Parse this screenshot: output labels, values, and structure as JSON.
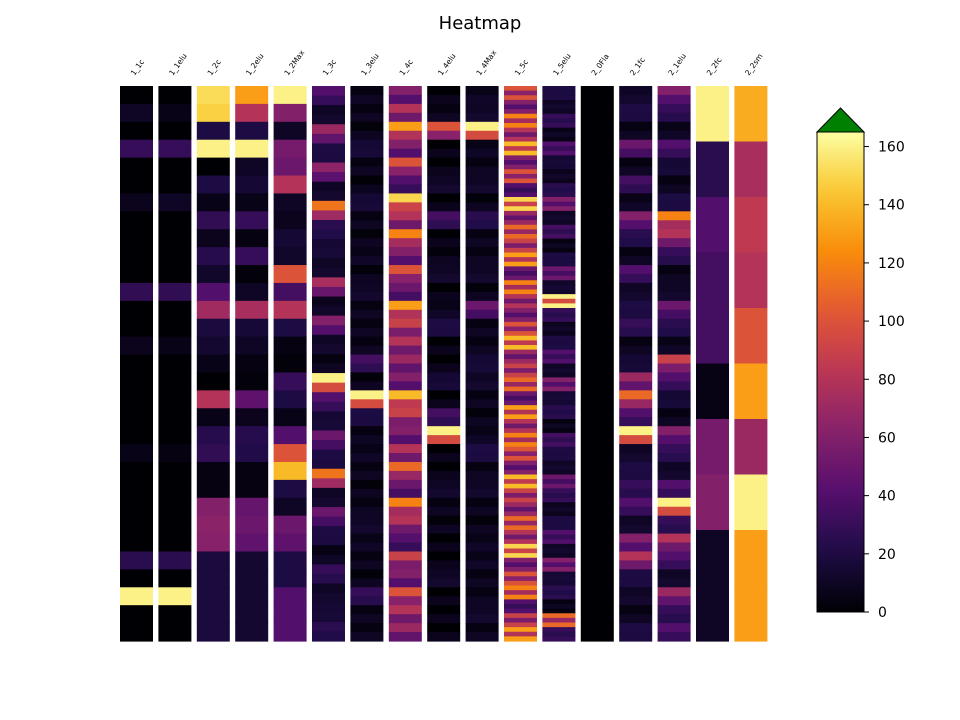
{
  "chart_data": {
    "type": "heatmap",
    "title": "Heatmap",
    "colormap": "inferno",
    "extend": "max",
    "extend_color": "#008000",
    "colorbar_range": [
      0,
      165
    ],
    "colorbar_ticks": [
      0,
      20,
      40,
      60,
      80,
      100,
      120,
      140,
      160
    ],
    "columns": [
      {
        "label": "1_1c",
        "stripes": 0,
        "values": [
          0,
          10,
          0,
          30,
          0,
          0,
          8,
          0,
          0,
          0,
          0,
          28,
          0,
          0,
          8,
          0,
          0,
          0,
          0,
          0,
          6,
          0,
          0,
          0,
          0,
          0,
          25,
          0,
          160,
          0,
          0
        ]
      },
      {
        "label": "1_1elu",
        "stripes": 0,
        "values": [
          0,
          6,
          0,
          30,
          0,
          0,
          10,
          0,
          0,
          0,
          0,
          28,
          0,
          0,
          6,
          0,
          0,
          0,
          0,
          0,
          4,
          0,
          0,
          0,
          0,
          0,
          25,
          0,
          160,
          0,
          0
        ]
      },
      {
        "label": "1_2c",
        "stripes": 0,
        "values": [
          152,
          148,
          20,
          160,
          0,
          20,
          6,
          28,
          8,
          24,
          12,
          40,
          72,
          18,
          14,
          6,
          0,
          80,
          6,
          24,
          28,
          4,
          4,
          60,
          64,
          62,
          18,
          18,
          18,
          18,
          18
        ]
      },
      {
        "label": "1_2elu",
        "stripes": 0,
        "values": [
          130,
          80,
          20,
          160,
          10,
          15,
          6,
          30,
          4,
          30,
          2,
          10,
          75,
          16,
          10,
          4,
          2,
          45,
          8,
          24,
          22,
          4,
          4,
          48,
          50,
          46,
          14,
          14,
          14,
          14,
          14
        ]
      },
      {
        "label": "1_2Max",
        "stripes": 0,
        "values": [
          160,
          60,
          10,
          55,
          50,
          80,
          10,
          8,
          15,
          12,
          100,
          35,
          80,
          20,
          4,
          2,
          30,
          20,
          6,
          40,
          100,
          140,
          20,
          10,
          50,
          45,
          20,
          20,
          40,
          40,
          40
        ]
      },
      {
        "label": "1_3c",
        "stripes": 1,
        "values": [
          40,
          10,
          70,
          20,
          65,
          10,
          115,
          25,
          15,
          10,
          75,
          8,
          60,
          10,
          4,
          160,
          40,
          15,
          50,
          20,
          115,
          10,
          50,
          20,
          5,
          30,
          10,
          15,
          25
        ]
      },
      {
        "label": "1_3elu",
        "stripes": 1,
        "values": [
          4,
          4,
          2,
          15,
          4,
          1,
          15,
          4,
          2,
          6,
          2,
          10,
          4,
          4,
          4,
          35,
          2,
          160,
          20,
          4,
          6,
          4,
          2,
          4,
          10,
          6,
          4,
          2,
          30,
          4,
          4
        ]
      },
      {
        "label": "1_4c",
        "stripes": 1,
        "values": [
          60,
          80,
          130,
          60,
          100,
          40,
          150,
          80,
          120,
          60,
          100,
          50,
          130,
          90,
          80,
          70,
          60,
          140,
          90,
          60,
          80,
          110,
          50,
          120,
          80,
          40,
          90,
          60,
          100,
          80,
          70
        ]
      },
      {
        "label": "1_4elu",
        "stripes": 1,
        "values": [
          0,
          4,
          100,
          0,
          0,
          10,
          0,
          35,
          0,
          2,
          10,
          0,
          6,
          20,
          0,
          0,
          15,
          0,
          35,
          160,
          0,
          0,
          10,
          4,
          2,
          0,
          0,
          10,
          0,
          0,
          0
        ]
      },
      {
        "label": "1_4Max",
        "stripes": 1,
        "values": [
          6,
          10,
          160,
          6,
          4,
          10,
          2,
          25,
          4,
          4,
          10,
          2,
          50,
          4,
          4,
          15,
          10,
          4,
          2,
          6,
          20,
          4,
          10,
          4,
          2,
          6,
          6,
          4,
          4,
          10,
          4
        ]
      },
      {
        "label": "1_5c",
        "stripes": 2,
        "values": [
          100,
          60,
          120,
          80,
          140,
          60,
          100,
          40,
          150,
          70,
          110,
          90,
          130,
          50,
          120,
          80,
          60,
          100,
          140,
          70,
          90,
          110,
          50,
          130,
          80,
          120,
          100,
          60,
          140,
          90,
          70,
          110,
          80,
          150,
          60,
          100,
          120,
          40,
          90,
          130
        ]
      },
      {
        "label": "1_5elu",
        "stripes": 2,
        "values": [
          20,
          10,
          30,
          6,
          40,
          15,
          8,
          25,
          60,
          10,
          35,
          4,
          20,
          50,
          12,
          160,
          30,
          8,
          20,
          40,
          10,
          60,
          15,
          25,
          4,
          35,
          20,
          10,
          50,
          30,
          8,
          20,
          40,
          10,
          60,
          15,
          25,
          4,
          110,
          30
        ]
      },
      {
        "label": "2_0Fla",
        "stripes": 0,
        "values": [
          0,
          0,
          0,
          0,
          0,
          0,
          0,
          0,
          0,
          0,
          0,
          0,
          0,
          0,
          0,
          0,
          0,
          0,
          0,
          0,
          0,
          0,
          0,
          0,
          0,
          0,
          0,
          0,
          0,
          0,
          0
        ]
      },
      {
        "label": "2_1fc",
        "stripes": 1,
        "values": [
          10,
          20,
          4,
          50,
          4,
          35,
          6,
          60,
          25,
          4,
          40,
          10,
          20,
          30,
          4,
          15,
          70,
          110,
          40,
          160,
          10,
          20,
          30,
          40,
          10,
          60,
          80,
          20,
          10,
          4,
          20
        ]
      },
      {
        "label": "2_1elu",
        "stripes": 1,
        "values": [
          60,
          30,
          6,
          40,
          15,
          4,
          20,
          120,
          80,
          30,
          4,
          10,
          50,
          25,
          6,
          90,
          40,
          15,
          4,
          60,
          30,
          10,
          40,
          160,
          30,
          80,
          40,
          10,
          70,
          30,
          40
        ]
      },
      {
        "label": "2_2fc",
        "stripes": 0,
        "values": [
          160,
          25,
          40,
          35,
          35,
          5,
          55,
          60,
          10,
          10
        ]
      },
      {
        "label": "2_2sm",
        "stripes": 0,
        "values": [
          135,
          75,
          85,
          80,
          100,
          130,
          70,
          160,
          130,
          130
        ]
      }
    ]
  }
}
